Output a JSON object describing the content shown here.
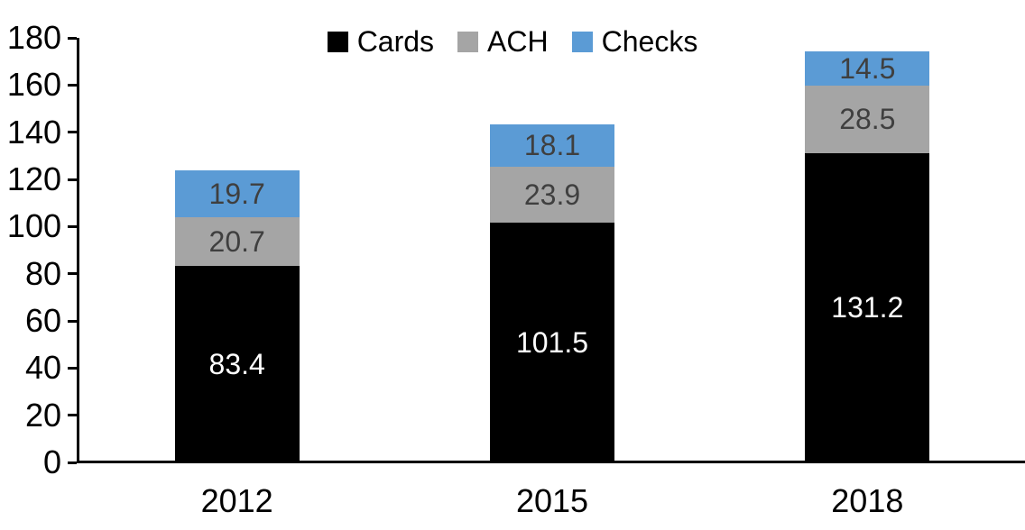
{
  "chart_data": {
    "type": "bar",
    "stacked": true,
    "title": "",
    "xlabel": "",
    "ylabel": "",
    "categories": [
      "2012",
      "2015",
      "2018"
    ],
    "series": [
      {
        "name": "Cards",
        "color": "#000000",
        "label_color": "#ffffff",
        "values": [
          83.4,
          101.5,
          131.2
        ]
      },
      {
        "name": "ACH",
        "color": "#a5a5a5",
        "label_color": "#3f3f3f",
        "values": [
          20.7,
          23.9,
          28.5
        ]
      },
      {
        "name": "Checks",
        "color": "#5b9bd5",
        "label_color": "#3f3f3f",
        "values": [
          19.7,
          18.1,
          14.5
        ]
      }
    ],
    "totals": [
      123.8,
      143.5,
      174.2
    ],
    "ylim": [
      0,
      180
    ],
    "yticks": [
      0,
      20,
      40,
      60,
      80,
      100,
      120,
      140,
      160,
      180
    ],
    "grid": false,
    "legend_position": "top-center",
    "axis_color": "#000000",
    "data_labels": "inside-center"
  }
}
